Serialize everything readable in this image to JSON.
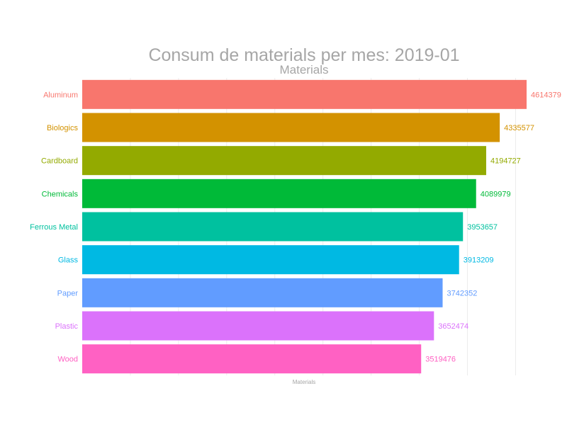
{
  "chart_data": {
    "type": "bar",
    "orientation": "horizontal",
    "title": "Consum de materials per mes: 2019-01",
    "subtitle": "Materials",
    "xlabel": "Materials",
    "ylabel": "",
    "xlim": [
      0,
      4614379
    ],
    "grid": true,
    "legend": "none",
    "categories": [
      "Aluminum",
      "Biologics",
      "Cardboard",
      "Chemicals",
      "Ferrous Metal",
      "Glass",
      "Paper",
      "Plastic",
      "Wood"
    ],
    "values": [
      4614379,
      4335577,
      4194727,
      4089979,
      3953657,
      3913209,
      3742352,
      3652474,
      3519476
    ],
    "value_labels": [
      "4614379",
      "4335577",
      "4194727",
      "4089979",
      "3953657",
      "3913209",
      "3742352",
      "3652474",
      "3519476"
    ],
    "colors": [
      "#f8766d",
      "#d39200",
      "#93aa00",
      "#00ba38",
      "#00c19f",
      "#00b9e3",
      "#619cff",
      "#db72fb",
      "#ff61c3"
    ]
  }
}
